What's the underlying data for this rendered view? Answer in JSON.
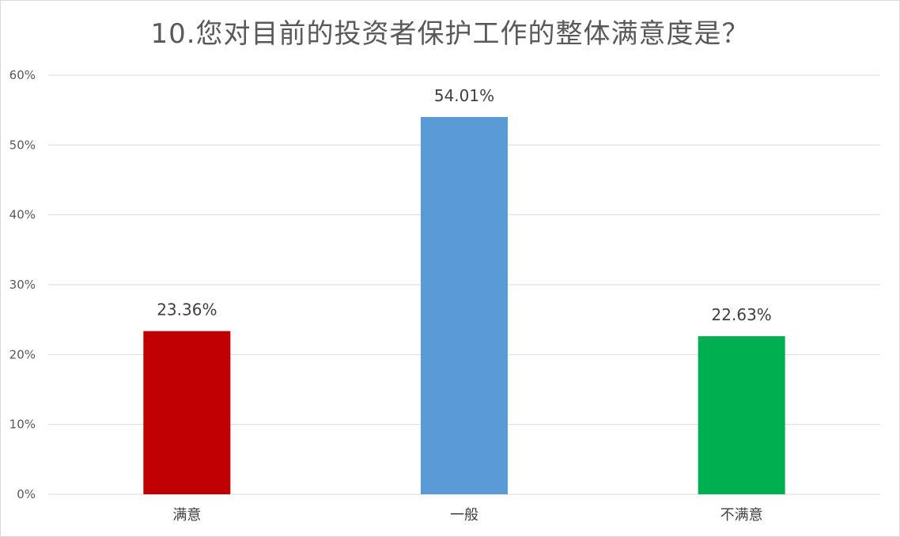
{
  "chart_data": {
    "type": "bar",
    "title": "10.您对目前的投资者保护工作的整体满意度是？",
    "categories": [
      "满意",
      "一般",
      "不满意"
    ],
    "values": [
      23.36,
      54.01,
      22.63
    ],
    "data_labels": [
      "23.36%",
      "54.01%",
      "22.63%"
    ],
    "bar_colors": [
      "#c00000",
      "#5b9bd5",
      "#00b050"
    ],
    "ylim": [
      0,
      60
    ],
    "yticks": [
      0,
      10,
      20,
      30,
      40,
      50,
      60
    ],
    "ytick_labels": [
      "0%",
      "10%",
      "20%",
      "30%",
      "40%",
      "50%",
      "60%"
    ],
    "xlabel": "",
    "ylabel": "",
    "grid": true,
    "legend": "none"
  }
}
